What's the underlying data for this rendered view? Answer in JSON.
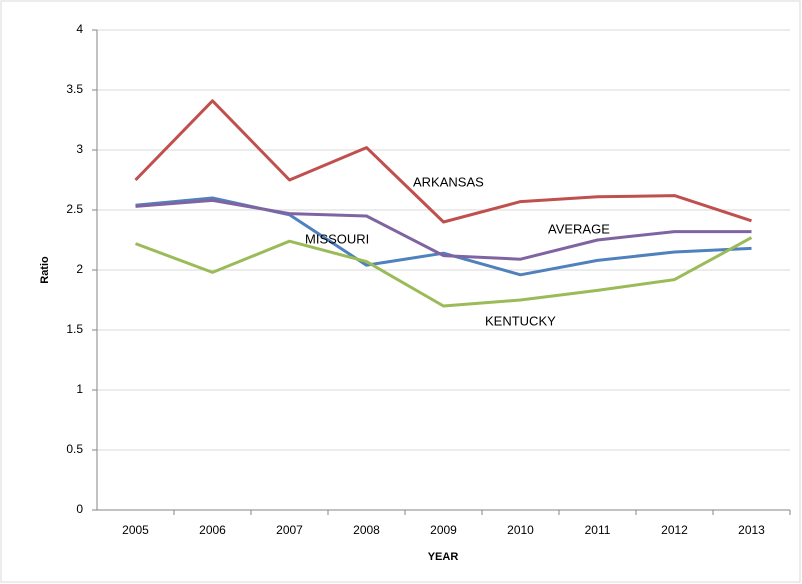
{
  "chart_data": {
    "type": "line",
    "x_label": "YEAR",
    "y_label": "Ratio",
    "categories": [
      "2005",
      "2006",
      "2007",
      "2008",
      "2009",
      "2010",
      "2011",
      "2012",
      "2013"
    ],
    "ylim": [
      0,
      4
    ],
    "yticks": [
      0,
      0.5,
      1,
      1.5,
      2,
      2.5,
      3,
      3.5,
      4
    ],
    "grid": true,
    "series": [
      {
        "name": "ARKANSAS",
        "color": "#c0504d",
        "values": [
          2.75,
          3.41,
          2.75,
          3.02,
          2.4,
          2.57,
          2.61,
          2.62,
          2.41
        ]
      },
      {
        "name": "MISSOURI",
        "color": "#4f81bd",
        "values": [
          2.54,
          2.6,
          2.46,
          2.04,
          2.14,
          1.96,
          2.08,
          2.15,
          2.18
        ]
      },
      {
        "name": "AVERAGE",
        "color": "#8064a2",
        "values": [
          2.53,
          2.58,
          2.47,
          2.45,
          2.12,
          2.09,
          2.25,
          2.32,
          2.32
        ]
      },
      {
        "name": "KENTUCKY",
        "color": "#9bbb59",
        "values": [
          2.22,
          1.98,
          2.24,
          2.07,
          1.7,
          1.75,
          1.83,
          1.92,
          2.27
        ]
      }
    ]
  }
}
